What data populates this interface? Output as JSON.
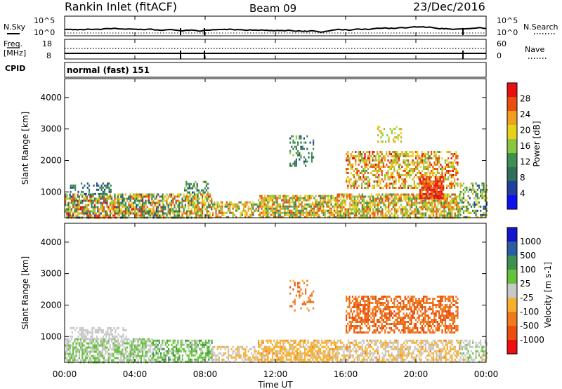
{
  "header": {
    "station": "Rankin Inlet (fitACF)",
    "beam": "Beam 09",
    "date": "23/Dec/2016"
  },
  "status_panels": {
    "nsky": {
      "left_label": "N.Sky",
      "left_ticks": [
        "10^5",
        "10^0"
      ],
      "right_label": "N.Search",
      "right_ticks": [
        "10^5",
        "10^0"
      ]
    },
    "freq": {
      "left_label_1": "Freq.",
      "left_label_2": "[MHz]",
      "left_ticks": [
        "18",
        "8"
      ],
      "right_label": "Nave",
      "right_ticks": [
        "60",
        "0"
      ]
    },
    "cpid": {
      "label": "CPID",
      "value": "normal (fast) 151"
    }
  },
  "time_axis": {
    "label": "Time UT",
    "ticks": [
      "00:00",
      "04:00",
      "08:00",
      "12:00",
      "16:00",
      "20:00",
      "00:00"
    ]
  },
  "colors": {
    "power_scale": [
      "#1010ee",
      "#2040a0",
      "#2e6e5a",
      "#3f8f4e",
      "#8cc63e",
      "#e6d21a",
      "#f0a020",
      "#e85010",
      "#e61010"
    ],
    "velocity_scale": [
      "#ee1010",
      "#e8500c",
      "#f07a1e",
      "#f5b030",
      "#c8c8c8",
      "#66c23a",
      "#3f8f4e",
      "#2a5ea0",
      "#1515cc"
    ]
  },
  "chart_data": [
    {
      "type": "heatmap",
      "name": "power",
      "ylabel": "Slant Range [km]",
      "yticks": [
        1000,
        2000,
        3000,
        4000
      ],
      "ylim": [
        180,
        4600
      ],
      "xlim_hours": [
        0,
        24
      ],
      "colorbar_label": "Power [dB]",
      "colorbar_ticks": [
        "28",
        "24",
        "20",
        "16",
        "12",
        "8",
        "4"
      ],
      "colorbar_range": [
        0,
        32
      ],
      "regions": [
        {
          "t": [
            0.0,
            5.6
          ],
          "r": [
            200,
            950
          ],
          "v": [
            6,
            30
          ],
          "d": 0.75
        },
        {
          "t": [
            0.3,
            2.6
          ],
          "r": [
            950,
            1300
          ],
          "v": [
            4,
            14
          ],
          "d": 0.35
        },
        {
          "t": [
            5.6,
            8.4
          ],
          "r": [
            200,
            950
          ],
          "v": [
            8,
            28
          ],
          "d": 0.7
        },
        {
          "t": [
            6.8,
            8.2
          ],
          "r": [
            950,
            1350
          ],
          "v": [
            6,
            16
          ],
          "d": 0.45
        },
        {
          "t": [
            8.4,
            11.0
          ],
          "r": [
            200,
            700
          ],
          "v": [
            10,
            28
          ],
          "d": 0.6
        },
        {
          "t": [
            11.0,
            15.5
          ],
          "r": [
            200,
            900
          ],
          "v": [
            10,
            28
          ],
          "d": 0.75
        },
        {
          "t": [
            12.8,
            14.2
          ],
          "r": [
            1800,
            2800
          ],
          "v": [
            6,
            16
          ],
          "d": 0.25
        },
        {
          "t": [
            15.5,
            22.5
          ],
          "r": [
            200,
            950
          ],
          "v": [
            12,
            28
          ],
          "d": 0.7
        },
        {
          "t": [
            16.0,
            22.4
          ],
          "r": [
            1100,
            2300
          ],
          "v": [
            14,
            30
          ],
          "d": 0.55
        },
        {
          "t": [
            20.2,
            21.6
          ],
          "r": [
            800,
            1500
          ],
          "v": [
            24,
            32
          ],
          "d": 0.85
        },
        {
          "t": [
            22.5,
            24.0
          ],
          "r": [
            200,
            1300
          ],
          "v": [
            6,
            22
          ],
          "d": 0.45
        },
        {
          "t": [
            17.8,
            19.2
          ],
          "r": [
            2600,
            3100
          ],
          "v": [
            14,
            24
          ],
          "d": 0.3
        }
      ]
    },
    {
      "type": "heatmap",
      "name": "velocity",
      "ylabel": "Slant Range [km]",
      "yticks": [
        1000,
        2000,
        3000,
        4000
      ],
      "ylim": [
        180,
        4600
      ],
      "xlim_hours": [
        0,
        24
      ],
      "colorbar_label": "Velocity [m s-1]",
      "colorbar_ticks": [
        "1000",
        "500",
        "100",
        "25",
        "-25",
        "-100",
        "-500",
        "-1000"
      ],
      "colorbar_range": [
        -1000,
        1000
      ],
      "regions": [
        {
          "t": [
            0.0,
            5.0
          ],
          "r": [
            200,
            950
          ],
          "v": [
            -50,
            250
          ],
          "d": 0.7
        },
        {
          "t": [
            0.3,
            3.5
          ],
          "r": [
            950,
            1300
          ],
          "v": [
            -10,
            10
          ],
          "d": 0.4
        },
        {
          "t": [
            5.0,
            8.4
          ],
          "r": [
            200,
            900
          ],
          "v": [
            20,
            400
          ],
          "d": 0.6
        },
        {
          "t": [
            8.4,
            11.0
          ],
          "r": [
            200,
            700
          ],
          "v": [
            -300,
            100
          ],
          "d": 0.5
        },
        {
          "t": [
            11.0,
            15.5
          ],
          "r": [
            200,
            900
          ],
          "v": [
            -350,
            -60
          ],
          "d": 0.7
        },
        {
          "t": [
            12.8,
            14.2
          ],
          "r": [
            1800,
            2800
          ],
          "v": [
            -600,
            -300
          ],
          "d": 0.25
        },
        {
          "t": [
            15.5,
            22.5
          ],
          "r": [
            200,
            900
          ],
          "v": [
            -350,
            100
          ],
          "d": 0.6
        },
        {
          "t": [
            16.0,
            22.4
          ],
          "r": [
            1100,
            2300
          ],
          "v": [
            -700,
            -350
          ],
          "d": 0.6
        },
        {
          "t": [
            22.5,
            24.0
          ],
          "r": [
            200,
            900
          ],
          "v": [
            -150,
            250
          ],
          "d": 0.45
        }
      ]
    }
  ]
}
